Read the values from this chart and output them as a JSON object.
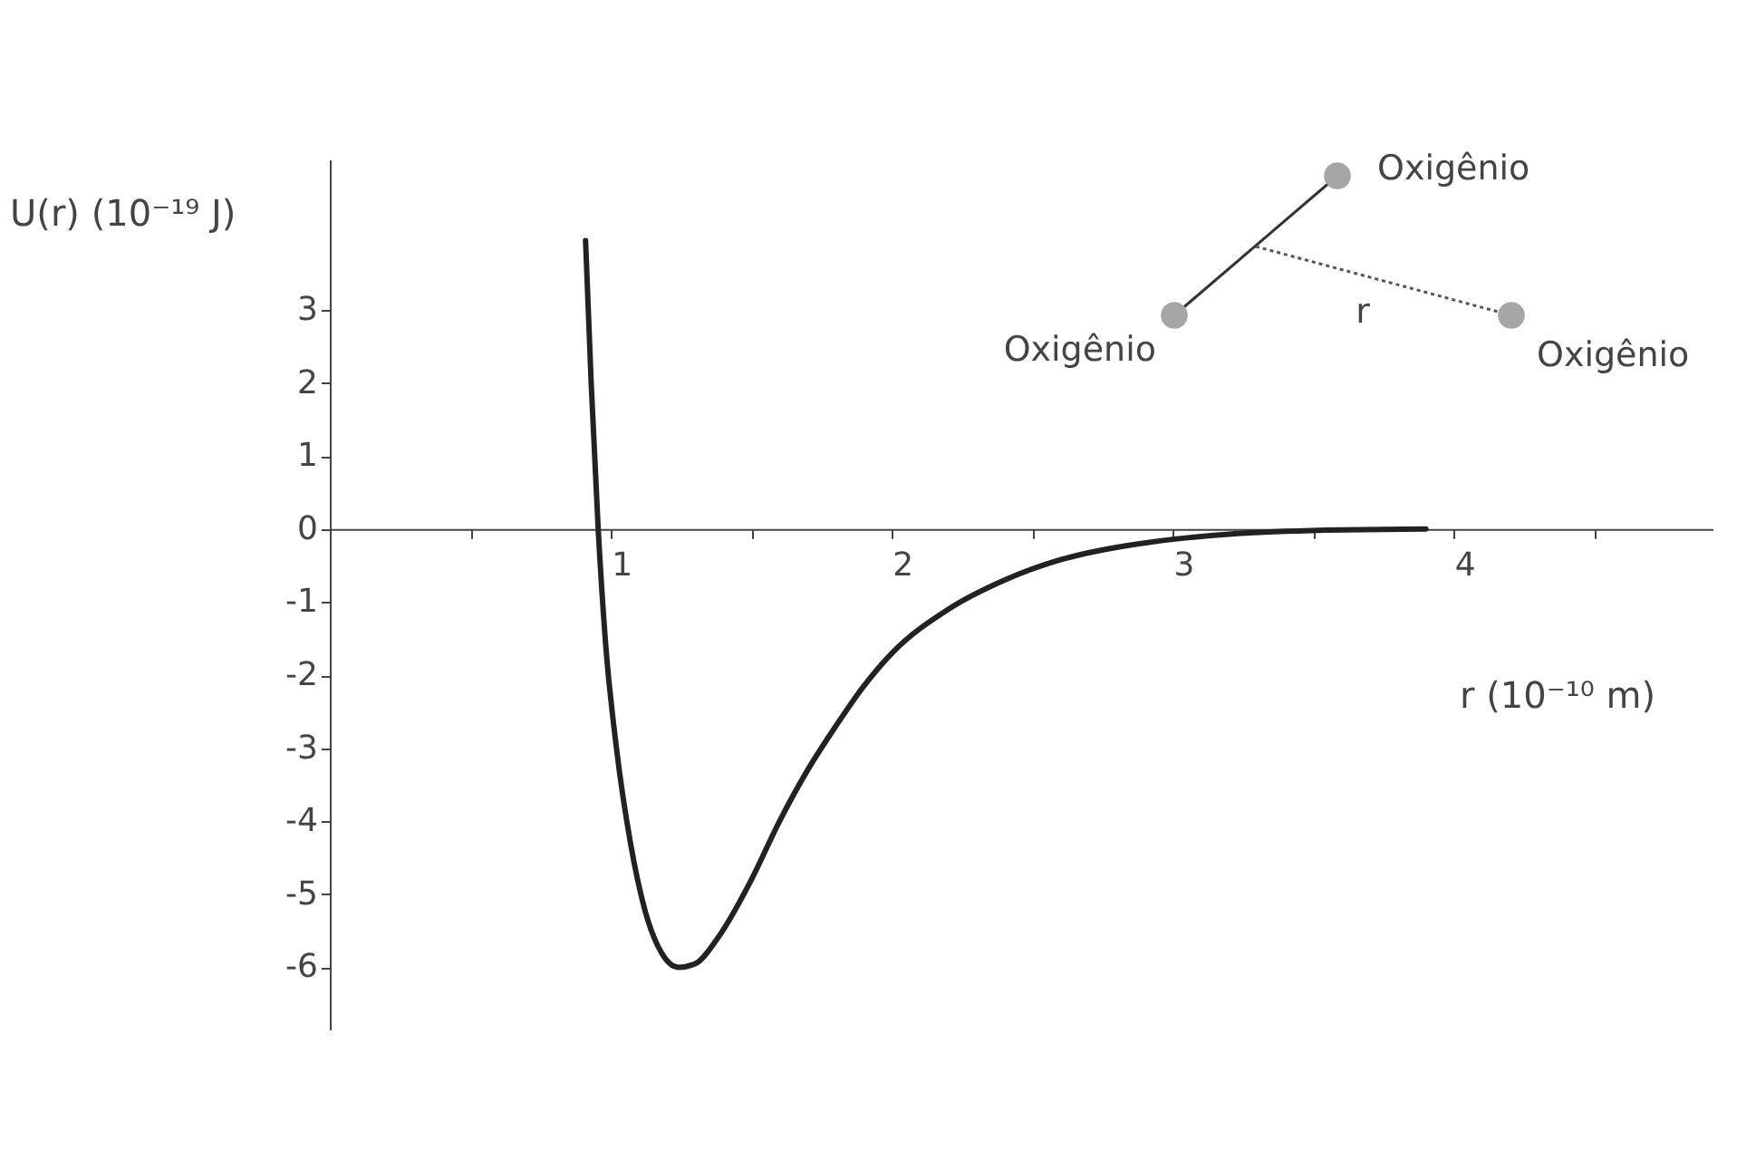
{
  "chart_data": {
    "type": "line",
    "xlabel": "r (10⁻¹⁰ m)",
    "ylabel": "U(r) (10⁻¹⁹ J)",
    "x": [
      0.91,
      0.93,
      0.955,
      0.98,
      1.02,
      1.07,
      1.12,
      1.18,
      1.24,
      1.3,
      1.38,
      1.5,
      1.6,
      1.7,
      1.8,
      1.9,
      2.0,
      2.2,
      2.4,
      2.6,
      2.8,
      3.0,
      3.2,
      3.4,
      3.6,
      3.9
    ],
    "series": [
      {
        "color": "#222222",
        "values": [
          3.95,
          2.0,
          0.0,
          -1.5,
          -3.0,
          -4.3,
          -5.2,
          -5.8,
          -6.0,
          -5.95,
          -5.6,
          -4.8,
          -4.0,
          -3.3,
          -2.7,
          -2.15,
          -1.7,
          -1.1,
          -0.7,
          -0.42,
          -0.25,
          -0.14,
          -0.07,
          -0.03,
          -0.01,
          0.0
        ]
      }
    ],
    "xlim": [
      0,
      4.92
    ],
    "ylim": [
      -6.85,
      5.06
    ],
    "xticks": [
      {
        "value": 0.5,
        "label": null
      },
      1,
      {
        "value": 1.5,
        "label": null
      },
      2,
      {
        "value": 2.5,
        "label": null
      },
      3,
      {
        "value": 3.5,
        "label": null
      },
      4,
      {
        "value": 4.5,
        "label": null
      }
    ],
    "yticks": [
      -6,
      -5,
      -4,
      -3,
      -2,
      -1,
      0,
      1,
      2,
      3
    ],
    "annotations": [
      "Oxigênio",
      "Oxigênio",
      "Oxigênio",
      "r"
    ],
    "grid": false,
    "marker": "none",
    "line_style": "solid"
  }
}
